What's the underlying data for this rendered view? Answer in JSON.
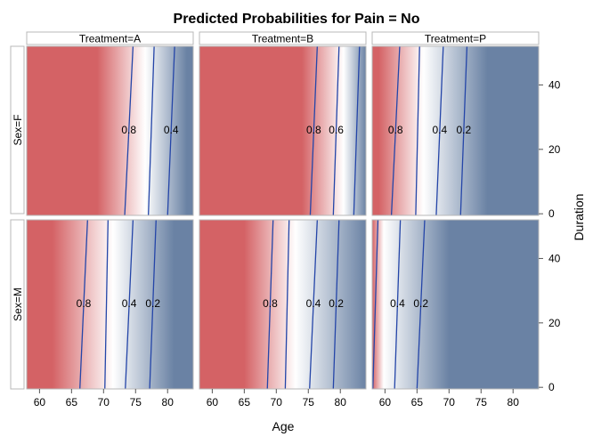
{
  "chart_data": {
    "type": "heatmap",
    "title": "Predicted Probabilities for Pain = No",
    "xlabel": "Age",
    "ylabel": "Duration",
    "xlim": [
      58,
      84
    ],
    "ylim": [
      -0.5,
      52
    ],
    "x_ticks": [
      60,
      65,
      70,
      75,
      80
    ],
    "y_ticks": [
      0,
      20,
      40
    ],
    "colorscale": {
      "high": "#d46265",
      "mid": "#ffffff",
      "low": "#6a82a4"
    },
    "column_headers": [
      "Treatment=A",
      "Treatment=B",
      "Treatment=P"
    ],
    "row_headers": [
      "Sex=F",
      "Sex=M"
    ],
    "panels": [
      {
        "treatment": "Treatment=A",
        "sex": "Sex=F",
        "gradient": {
          "high_until": 69,
          "mid_at": 76.5,
          "low_from": 83
        },
        "contours": [
          {
            "label": "0.8",
            "x_bottom": 73.3,
            "x_top": 74.6
          },
          {
            "label": "0.6",
            "x_bottom": 77.0,
            "x_top": 77.9,
            "show_label": false
          },
          {
            "label": "0.4",
            "x_bottom": 80.0,
            "x_top": 81.1
          }
        ]
      },
      {
        "treatment": "Treatment=B",
        "sex": "Sex=F",
        "gradient": {
          "high_until": 74,
          "mid_at": 80.5,
          "low_from": 86
        },
        "contours": [
          {
            "label": "0.8",
            "x_bottom": 75.3,
            "x_top": 76.4
          },
          {
            "label": "0.6",
            "x_bottom": 78.9,
            "x_top": 79.8
          },
          {
            "label": "0.4",
            "x_bottom": 82.1,
            "x_top": 83.0,
            "show_label": false
          }
        ]
      },
      {
        "treatment": "Treatment=P",
        "sex": "Sex=F",
        "gradient": {
          "high_until": 59,
          "mid_at": 66,
          "low_from": 76
        },
        "contours": [
          {
            "label": "0.8",
            "x_bottom": 61.0,
            "x_top": 62.3
          },
          {
            "label": "0.6",
            "x_bottom": 64.8,
            "x_top": 65.4,
            "show_label": false
          },
          {
            "label": "0.4",
            "x_bottom": 68.0,
            "x_top": 69.1
          },
          {
            "label": "0.2",
            "x_bottom": 71.8,
            "x_top": 72.8
          }
        ]
      },
      {
        "treatment": "Treatment=A",
        "sex": "Sex=M",
        "gradient": {
          "high_until": 62,
          "mid_at": 71.5,
          "low_from": 81
        },
        "contours": [
          {
            "label": "0.8",
            "x_bottom": 66.3,
            "x_top": 67.5
          },
          {
            "label": "0.6",
            "x_bottom": 70.2,
            "x_top": 70.7,
            "show_label": false
          },
          {
            "label": "0.4",
            "x_bottom": 73.4,
            "x_top": 74.6
          },
          {
            "label": "0.2",
            "x_bottom": 77.2,
            "x_top": 78.2
          }
        ]
      },
      {
        "treatment": "Treatment=B",
        "sex": "Sex=M",
        "gradient": {
          "high_until": 65,
          "mid_at": 73,
          "low_from": 84
        },
        "contours": [
          {
            "label": "0.8",
            "x_bottom": 68.6,
            "x_top": 69.5
          },
          {
            "label": "0.6",
            "x_bottom": 71.4,
            "x_top": 72.0,
            "show_label": false
          },
          {
            "label": "0.4",
            "x_bottom": 75.2,
            "x_top": 76.4
          },
          {
            "label": "0.2",
            "x_bottom": 78.9,
            "x_top": 79.8
          }
        ]
      },
      {
        "treatment": "Treatment=P",
        "sex": "Sex=M",
        "gradient": {
          "high_until": 52,
          "mid_at": 59.8,
          "low_from": 70
        },
        "contours": [
          {
            "label": "0.6",
            "x_bottom": 58.1,
            "x_top": 58.9,
            "show_label": false
          },
          {
            "label": "0.4",
            "x_bottom": 61.5,
            "x_top": 62.4
          },
          {
            "label": "0.2",
            "x_bottom": 65.0,
            "x_top": 66.2
          }
        ]
      }
    ]
  }
}
